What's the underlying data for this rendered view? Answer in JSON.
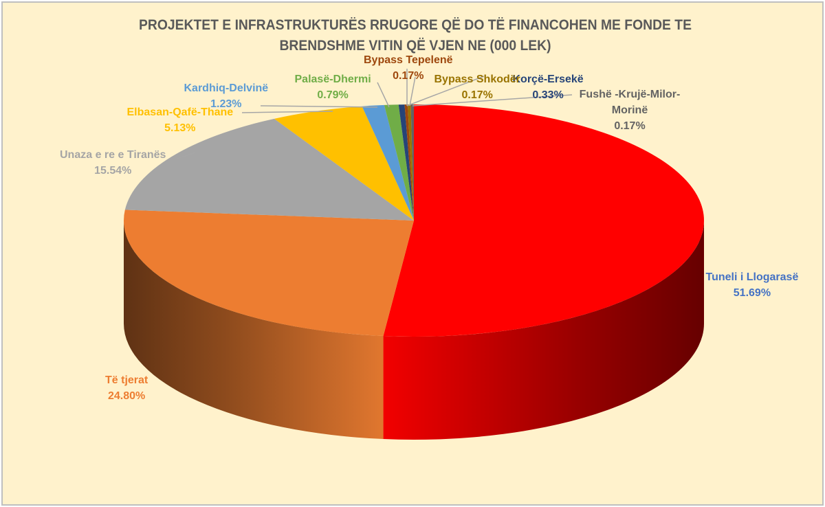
{
  "chart_data": {
    "type": "pie",
    "style": "3d-exploded-none",
    "title": "PROJEKTET E INFRASTRUKTURËS RRUGORE QË DO TË FINANCOHEN ME FONDE TE BRENDSHME VITIN QË VJEN NE (000 LEK)",
    "legend": "none (data labels)",
    "slices": [
      {
        "label": "Tuneli i Llogarasë",
        "value": 51.69,
        "display": "51.69%",
        "color": "#ff0000",
        "label_color": "#4472c4"
      },
      {
        "label": "Të tjerat",
        "value": 24.8,
        "display": "24.80%",
        "color": "#ed7d31",
        "label_color": "#ed7d31"
      },
      {
        "label": "Unaza e re e Tiranës",
        "value": 15.54,
        "display": "15.54%",
        "color": "#a5a5a5",
        "label_color": "#a5a5a5"
      },
      {
        "label": "Elbasan-Qafë-Thane",
        "value": 5.13,
        "display": "5.13%",
        "color": "#ffc000",
        "label_color": "#ffc000"
      },
      {
        "label": "Kardhiq-Delvinë",
        "value": 1.23,
        "display": "1.23%",
        "color": "#5b9bd5",
        "label_color": "#5b9bd5"
      },
      {
        "label": "Palasë-Dhermi",
        "value": 0.79,
        "display": "0.79%",
        "color": "#70ad47",
        "label_color": "#70ad47"
      },
      {
        "label": "Korçë-Ersekë",
        "value": 0.33,
        "display": "0.33%",
        "color": "#264478",
        "label_color": "#264478"
      },
      {
        "label": "Bypass Tepelenë",
        "value": 0.17,
        "display": "0.17%",
        "color": "#9e480e",
        "label_color": "#9e480e"
      },
      {
        "label": "Bypass Shkodër",
        "value": 0.17,
        "display": "0.17%",
        "color": "#997300",
        "label_color": "#997300"
      },
      {
        "label": "Fushë -Krujë-Milor-Morinë",
        "value": 0.17,
        "display": "0.17%",
        "color": "#636363",
        "label_color": "#636363"
      }
    ]
  }
}
